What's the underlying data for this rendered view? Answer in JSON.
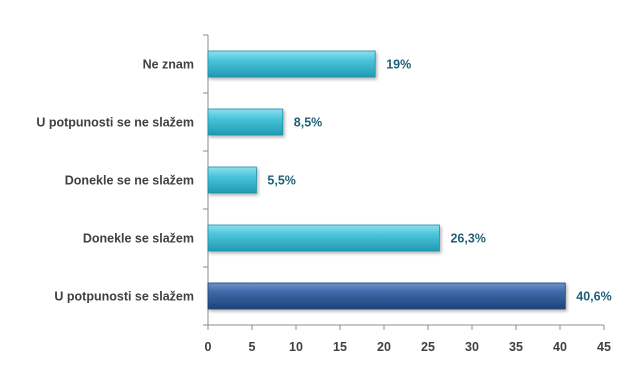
{
  "chart_data": {
    "type": "bar",
    "orientation": "horizontal",
    "title": "",
    "xlabel": "",
    "ylabel": "",
    "xlim": [
      0,
      45
    ],
    "x_ticks": [
      0,
      5,
      10,
      15,
      20,
      25,
      30,
      35,
      40,
      45
    ],
    "grid": false,
    "legend": "none",
    "categories": [
      "Ne znam",
      "U potpunosti se ne slažem",
      "Donekle se ne slažem",
      "Donekle se slažem",
      "U potpunosti se slažem"
    ],
    "values": [
      19,
      8.5,
      5.5,
      26.3,
      40.6
    ],
    "data_labels": [
      "19%",
      "8,5%",
      "5,5%",
      "26,3%",
      "40,6%"
    ],
    "bar_colors": [
      "#3ab9d1",
      "#3ab9d1",
      "#3ab9d1",
      "#3ab9d1",
      "#2e5b9c"
    ]
  }
}
